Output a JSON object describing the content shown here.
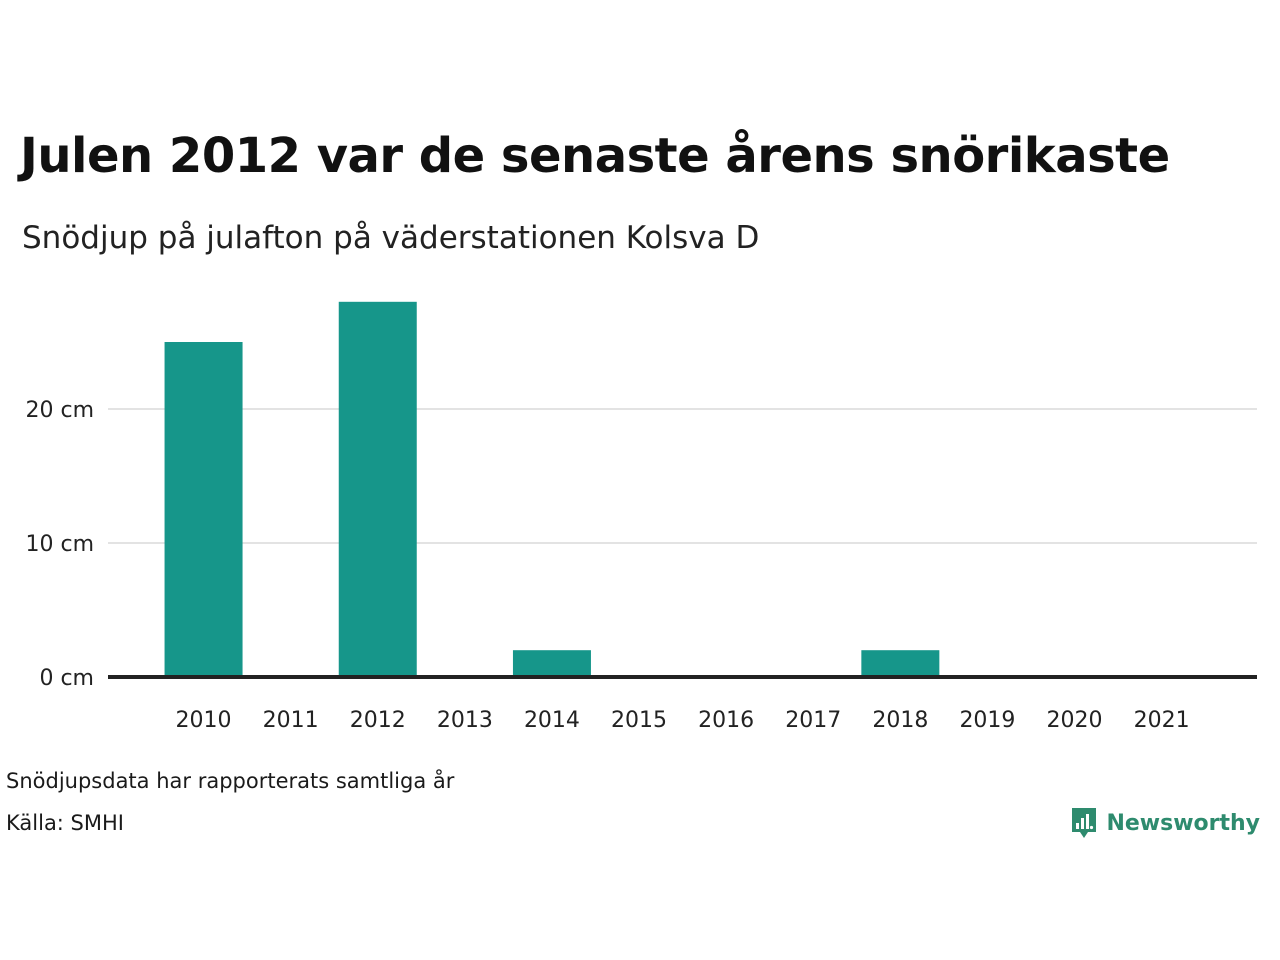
{
  "brand": {
    "name": "Newsworthy",
    "icon": "newsworthy-logo-icon",
    "color": "#2e8b6e"
  },
  "footer": {
    "note": "Snödjupsdata har rapporterats samtliga år",
    "source": "Källa: SMHI"
  },
  "chart_data": {
    "type": "bar",
    "title": "Julen 2012 var de senaste årens snörikaste",
    "subtitle": "Snödjup på julafton på väderstationen Kolsva D",
    "xlabel": "",
    "ylabel": "",
    "categories": [
      "2010",
      "2011",
      "2012",
      "2013",
      "2014",
      "2015",
      "2016",
      "2017",
      "2018",
      "2019",
      "2020",
      "2021"
    ],
    "values": [
      25,
      0,
      28,
      0,
      2,
      0,
      0,
      0,
      2,
      0,
      0,
      0
    ],
    "ylim": [
      0,
      30
    ],
    "yticks": [
      {
        "value": 0,
        "label": "0 cm"
      },
      {
        "value": 10,
        "label": "10 cm"
      },
      {
        "value": 20,
        "label": "20 cm"
      }
    ],
    "grid": true,
    "legend": "none",
    "bar_color": "#16968a",
    "grid_color": "#e3e3e3",
    "baseline_color": "#222222"
  }
}
